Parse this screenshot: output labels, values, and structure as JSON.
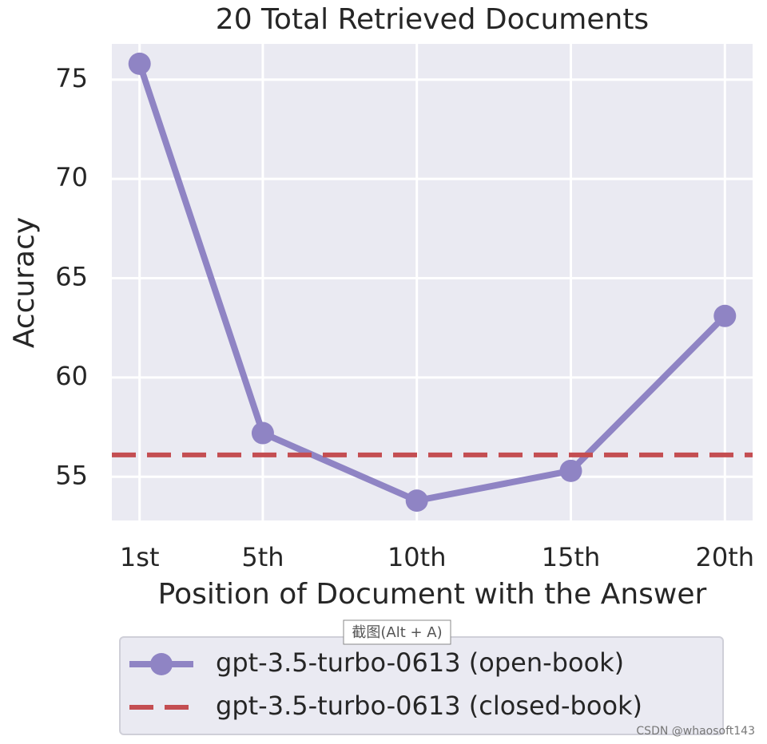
{
  "chart_data": {
    "type": "line",
    "title": "20 Total Retrieved Documents",
    "x_label": "Position of Document with the Answer",
    "y_label": "Accuracy",
    "xlim": [
      0.1,
      20.9
    ],
    "ylim": [
      52.8,
      76.8
    ],
    "xticks": [
      {
        "value": 1,
        "label": "1st"
      },
      {
        "value": 5,
        "label": "5th"
      },
      {
        "value": 10,
        "label": "10th"
      },
      {
        "value": 15,
        "label": "15th"
      },
      {
        "value": 20,
        "label": "20th"
      }
    ],
    "yticks": [
      55,
      60,
      65,
      70,
      75
    ],
    "grid": true,
    "legend": "below",
    "series": [
      {
        "name": "gpt-3.5-turbo-0613 (open-book)",
        "color": "#8f84c4",
        "x": [
          1,
          5,
          10,
          15,
          20
        ],
        "values": [
          75.8,
          57.2,
          53.8,
          55.3,
          63.1
        ]
      },
      {
        "name": "gpt-3.5-turbo-0613 (closed-book)",
        "color": "#c44e52",
        "style": "dashed",
        "value": 56.1
      }
    ]
  },
  "overlay": {
    "tooltip": "截图(Alt + A)",
    "watermark": "CSDN @whaosoft143"
  }
}
